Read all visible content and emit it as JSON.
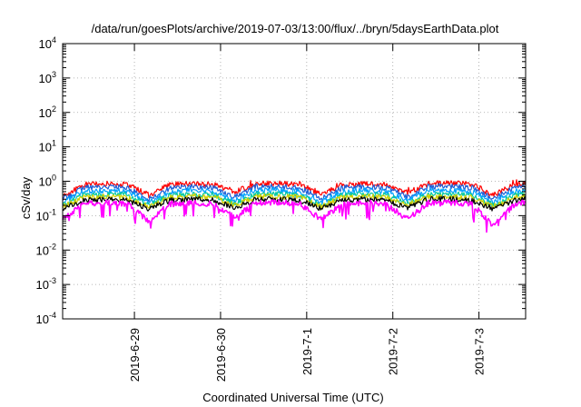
{
  "chart_data": {
    "type": "line",
    "title": "/data/run/goesPlots/archive/2019-07-03/13:00/flux/../bryn/5daysEarthData.plot",
    "xlabel": "Coordinated Universal Time (UTC)",
    "ylabel": "cSv/day",
    "y_scale": "log",
    "ylim": [
      0.0001,
      10000
    ],
    "y_ticks": [
      {
        "base": "10",
        "exp": "-4",
        "value": 0.0001
      },
      {
        "base": "10",
        "exp": "-3",
        "value": 0.001
      },
      {
        "base": "10",
        "exp": "-2",
        "value": 0.01
      },
      {
        "base": "10",
        "exp": "-1",
        "value": 0.1
      },
      {
        "base": "10",
        "exp": "0",
        "value": 1
      },
      {
        "base": "10",
        "exp": "1",
        "value": 10
      },
      {
        "base": "10",
        "exp": "2",
        "value": 100
      },
      {
        "base": "10",
        "exp": "3",
        "value": 1000
      },
      {
        "base": "10",
        "exp": "4",
        "value": 10000
      }
    ],
    "xlim": [
      "2019-06-28 04:00",
      "2019-07-03 13:00"
    ],
    "x_ticks": [
      "2019-6-29",
      "2019-6-30",
      "2019-7-1",
      "2019-7-2",
      "2019-7-3"
    ],
    "grid": true,
    "legend": "none",
    "x_hours": [
      0,
      6,
      12,
      18,
      24,
      30,
      36,
      42,
      48,
      54,
      60,
      66,
      72,
      78,
      84,
      90,
      96,
      102,
      108,
      114,
      120,
      126,
      129
    ],
    "series": [
      {
        "color": "#ff0000",
        "values": [
          0.35,
          0.8,
          0.85,
          0.8,
          0.4,
          0.8,
          0.85,
          0.8,
          0.5,
          0.85,
          0.85,
          0.8,
          0.4,
          0.8,
          0.85,
          0.8,
          0.45,
          0.85,
          0.9,
          0.8,
          0.4,
          0.8,
          0.85
        ]
      },
      {
        "color": "#1f5fd6",
        "values": [
          0.3,
          0.65,
          0.7,
          0.65,
          0.3,
          0.65,
          0.7,
          0.65,
          0.35,
          0.7,
          0.7,
          0.65,
          0.3,
          0.65,
          0.7,
          0.65,
          0.35,
          0.7,
          0.7,
          0.65,
          0.3,
          0.65,
          0.7
        ]
      },
      {
        "color": "#00a2ff",
        "values": [
          0.25,
          0.5,
          0.55,
          0.5,
          0.25,
          0.5,
          0.55,
          0.5,
          0.28,
          0.55,
          0.55,
          0.5,
          0.25,
          0.5,
          0.55,
          0.5,
          0.28,
          0.55,
          0.55,
          0.5,
          0.25,
          0.5,
          0.55
        ]
      },
      {
        "color": "#00c8a0",
        "values": [
          0.2,
          0.4,
          0.42,
          0.4,
          0.2,
          0.4,
          0.42,
          0.4,
          0.22,
          0.42,
          0.42,
          0.4,
          0.2,
          0.4,
          0.42,
          0.4,
          0.22,
          0.42,
          0.42,
          0.4,
          0.2,
          0.4,
          0.42
        ]
      },
      {
        "color": "#d0d000",
        "values": [
          0.18,
          0.34,
          0.36,
          0.34,
          0.18,
          0.34,
          0.36,
          0.34,
          0.2,
          0.36,
          0.36,
          0.34,
          0.18,
          0.34,
          0.36,
          0.34,
          0.2,
          0.36,
          0.36,
          0.34,
          0.18,
          0.34,
          0.36
        ]
      },
      {
        "color": "#000000",
        "values": [
          0.16,
          0.28,
          0.3,
          0.28,
          0.16,
          0.28,
          0.3,
          0.28,
          0.17,
          0.3,
          0.3,
          0.28,
          0.16,
          0.28,
          0.3,
          0.28,
          0.17,
          0.3,
          0.3,
          0.28,
          0.16,
          0.28,
          0.3
        ]
      },
      {
        "color": "#ff00ff",
        "values": [
          0.08,
          0.22,
          0.24,
          0.22,
          0.07,
          0.22,
          0.24,
          0.22,
          0.09,
          0.24,
          0.24,
          0.22,
          0.08,
          0.22,
          0.24,
          0.22,
          0.08,
          0.24,
          0.24,
          0.22,
          0.05,
          0.22,
          0.24
        ]
      }
    ]
  }
}
